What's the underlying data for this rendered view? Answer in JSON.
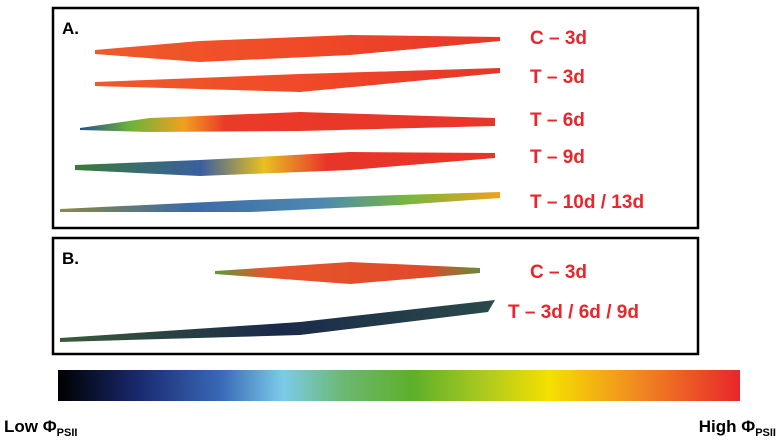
{
  "panels": [
    {
      "label": "A.",
      "leaves": [
        "C – 3d",
        "T – 3d",
        "T – 6d",
        "T – 9d",
        "T – 10d / 13d"
      ]
    },
    {
      "label": "B.",
      "leaves": [
        "C – 3d",
        "T – 3d / 6d / 9d"
      ]
    }
  ],
  "colorbar": {
    "low": {
      "text": "Low Φ",
      "subscript": "PSII"
    },
    "high": {
      "text": "High Φ",
      "subscript": "PSII"
    }
  }
}
